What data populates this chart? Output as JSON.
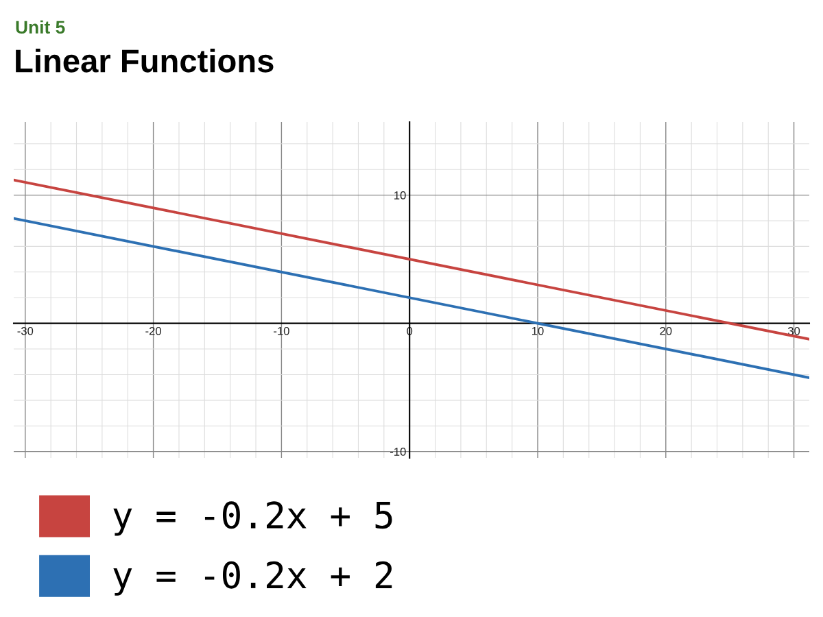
{
  "chart_data": {
    "type": "line",
    "subtitle": "Unit 5",
    "title": "Linear Functions",
    "x": [
      -30.9,
      31.2
    ],
    "series": [
      {
        "name": "y = -0.2x + 5",
        "color": "#c74440",
        "values": [
          11.18,
          -1.24
        ]
      },
      {
        "name": "y = -0.2x + 2",
        "color": "#2d70b3",
        "values": [
          8.18,
          -4.24
        ]
      }
    ],
    "xlim": [
      -30.9,
      31.2
    ],
    "ylim": [
      -10.5,
      15.7
    ],
    "xticks": [
      {
        "value": -30,
        "label": "-30"
      },
      {
        "value": -28,
        "label": null
      },
      {
        "value": -26,
        "label": null
      },
      {
        "value": -24,
        "label": null
      },
      {
        "value": -22,
        "label": null
      },
      {
        "value": -20,
        "label": "-20"
      },
      {
        "value": -18,
        "label": null
      },
      {
        "value": -16,
        "label": null
      },
      {
        "value": -14,
        "label": null
      },
      {
        "value": -12,
        "label": null
      },
      {
        "value": -10,
        "label": "-10"
      },
      {
        "value": -8,
        "label": null
      },
      {
        "value": -6,
        "label": null
      },
      {
        "value": -4,
        "label": null
      },
      {
        "value": -2,
        "label": null
      },
      {
        "value": 0,
        "label": "0"
      },
      {
        "value": 2,
        "label": null
      },
      {
        "value": 4,
        "label": null
      },
      {
        "value": 6,
        "label": null
      },
      {
        "value": 8,
        "label": null
      },
      {
        "value": 10,
        "label": "10"
      },
      {
        "value": 12,
        "label": null
      },
      {
        "value": 14,
        "label": null
      },
      {
        "value": 16,
        "label": null
      },
      {
        "value": 18,
        "label": null
      },
      {
        "value": 20,
        "label": "20"
      },
      {
        "value": 22,
        "label": null
      },
      {
        "value": 24,
        "label": null
      },
      {
        "value": 26,
        "label": null
      },
      {
        "value": 28,
        "label": null
      },
      {
        "value": 30,
        "label": "30"
      }
    ],
    "yticks": [
      {
        "value": -10,
        "label": "-10"
      },
      {
        "value": -8,
        "label": null
      },
      {
        "value": -6,
        "label": null
      },
      {
        "value": -4,
        "label": null
      },
      {
        "value": -2,
        "label": null
      },
      {
        "value": 0,
        "label": null
      },
      {
        "value": 2,
        "label": null
      },
      {
        "value": 4,
        "label": null
      },
      {
        "value": 6,
        "label": null
      },
      {
        "value": 8,
        "label": null
      },
      {
        "value": 10,
        "label": "10"
      },
      {
        "value": 12,
        "label": null
      },
      {
        "value": 14,
        "label": null
      }
    ],
    "grid": true,
    "legend": "bottom",
    "line_style": "solid",
    "marker": "none"
  }
}
